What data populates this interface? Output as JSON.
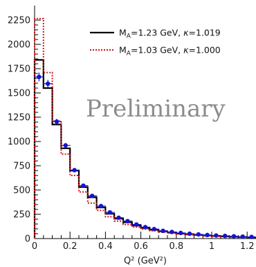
{
  "chart_data": {
    "type": "step",
    "title": "",
    "xlabel": "Q² (GeV²)",
    "ylabel": "",
    "xlim": [
      0,
      1.25
    ],
    "ylim": [
      0,
      2400
    ],
    "x_ticks": [
      0,
      0.2,
      0.4,
      0.6,
      0.8,
      1,
      1.2
    ],
    "x_tick_labels": [
      "0",
      "0.2",
      "0.4",
      "0.6",
      "0.8",
      "1",
      "1.2"
    ],
    "y_ticks": [
      0,
      250,
      500,
      750,
      1000,
      1250,
      1500,
      1750,
      2000,
      2250
    ],
    "y_tick_labels": [
      "0",
      "250",
      "500",
      "750",
      "1000",
      "1250",
      "1500",
      "1750",
      "2000",
      "2250"
    ],
    "annotation": "Preliminary",
    "legend_position": "top-right",
    "bin_edges": [
      0,
      0.05,
      0.1,
      0.15,
      0.2,
      0.25,
      0.3,
      0.35,
      0.4,
      0.45,
      0.5,
      0.55,
      0.6,
      0.65,
      0.7,
      0.75,
      0.8,
      0.85,
      0.9,
      0.95,
      1.0,
      1.05,
      1.1,
      1.15,
      1.2,
      1.25
    ],
    "series": [
      {
        "name": "M_A=1.23 GeV, κ=1.019",
        "legend_main": "M",
        "legend_sub": "A",
        "legend_rest": "=1.23 GeV, ",
        "legend_kappa": "κ",
        "legend_tail": "=1.019",
        "style": "solid",
        "color": "#000000",
        "values": [
          1840,
          1550,
          1175,
          930,
          700,
          530,
          425,
          320,
          255,
          205,
          168,
          135,
          110,
          90,
          75,
          62,
          52,
          44,
          37,
          31,
          26,
          22,
          18,
          15,
          12
        ]
      },
      {
        "name": "M_A=1.03 GeV, κ=1.000",
        "legend_main": "M",
        "legend_sub": "A",
        "legend_rest": "=1.03 GeV, ",
        "legend_kappa": "κ",
        "legend_tail": "=1.000",
        "style": "dotted",
        "color": "#d01818",
        "values": [
          2265,
          1710,
          1210,
          870,
          650,
          480,
          365,
          290,
          225,
          180,
          145,
          118,
          97,
          80,
          66,
          55,
          46,
          39,
          33,
          28,
          23,
          19,
          16,
          13,
          10
        ]
      }
    ],
    "data_points": {
      "color": "#1515cc",
      "x": [
        0.025,
        0.075,
        0.125,
        0.175,
        0.225,
        0.275,
        0.325,
        0.375,
        0.425,
        0.475,
        0.525,
        0.575,
        0.625,
        0.675,
        0.725,
        0.775,
        0.825,
        0.875,
        0.925,
        0.975,
        1.025,
        1.075,
        1.125,
        1.175,
        1.225
      ],
      "y": [
        1665,
        1595,
        1205,
        960,
        705,
        545,
        440,
        335,
        270,
        215,
        180,
        145,
        118,
        98,
        80,
        68,
        58,
        50,
        43,
        37,
        32,
        28,
        24,
        20,
        17
      ],
      "yerr": [
        45,
        40,
        28,
        24,
        20,
        17,
        15,
        13,
        12,
        11,
        10,
        9,
        8,
        8,
        7,
        7,
        6,
        6,
        6,
        5,
        5,
        5,
        5,
        4,
        4
      ]
    }
  }
}
